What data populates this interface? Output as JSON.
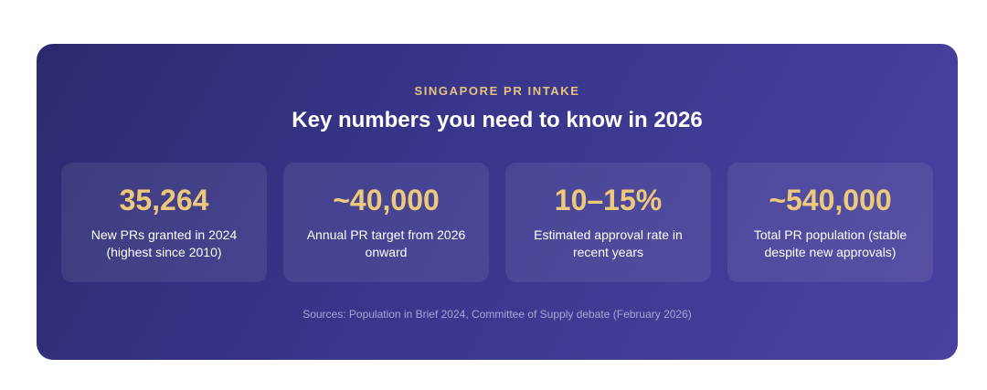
{
  "header": {
    "eyebrow": "SINGAPORE PR INTAKE",
    "title": "Key numbers you need to know in 2026"
  },
  "stats": [
    {
      "value": "35,264",
      "label": "New PRs granted in 2024 (highest since 2010)"
    },
    {
      "value": "~40,000",
      "label": "Annual PR target from 2026 onward"
    },
    {
      "value": "10–15%",
      "label": "Estimated approval rate in recent years"
    },
    {
      "value": "~540,000",
      "label": "Total PR population (stable despite new approvals)"
    }
  ],
  "sources": "Sources: Population in Brief 2024, Committee of Supply debate (February 2026)",
  "colors": {
    "card_start": "#2c2a6e",
    "card_end": "#4a42a0",
    "accent": "#ecc97b",
    "text": "#ffffff",
    "muted": "#a9a6d4"
  }
}
